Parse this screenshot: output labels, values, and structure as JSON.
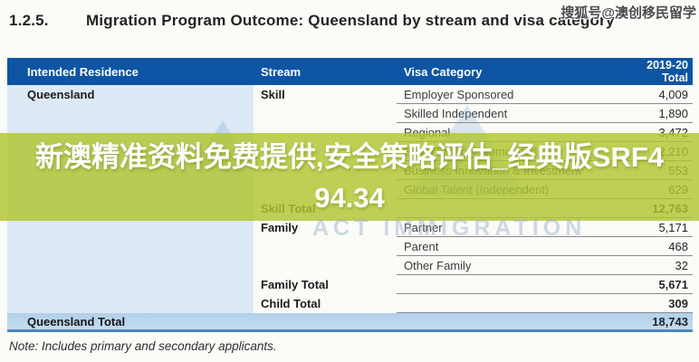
{
  "page": {
    "section_number": "1.2.5.",
    "title": "Migration Program Outcome: Queensland by stream and visa category",
    "note": "Note: Includes primary and secondary applicants."
  },
  "watermarks": {
    "top_right": "搜狐号@澳创移民留学",
    "center": "ACT IMMIGRATION"
  },
  "overlay_banner": {
    "line1": "新澳精准资料免费提供,安全策略评估_经典版SRF4",
    "line2": "94.34"
  },
  "table": {
    "header": {
      "residence": "Intended Residence",
      "stream": "Stream",
      "visa": "Visa Category",
      "total_line1": "2019-20",
      "total_line2": "Total"
    },
    "rows": [
      {
        "residence": "Queensland",
        "stream": "Skill",
        "visa": "Employer Sponsored",
        "total": "4,009",
        "is_total": false
      },
      {
        "residence": "",
        "stream": "",
        "visa": "Skilled Independent",
        "total": "1,890",
        "is_total": false
      },
      {
        "residence": "",
        "stream": "",
        "visa": "Regional",
        "total": "3,472",
        "is_total": false
      },
      {
        "residence": "",
        "stream": "",
        "visa": "State/Territory Nominated",
        "total": "2,210",
        "is_total": false
      },
      {
        "residence": "",
        "stream": "",
        "visa": "Business Innovation & Investment",
        "total": "553",
        "is_total": false
      },
      {
        "residence": "",
        "stream": "",
        "visa": "Global Talent (Independent)",
        "total": "629",
        "is_total": false
      },
      {
        "residence": "",
        "stream": "Skill Total",
        "visa": "",
        "total": "12,763",
        "is_total": true
      },
      {
        "residence": "",
        "stream": "Family",
        "visa": "Partner",
        "total": "5,171",
        "is_total": false
      },
      {
        "residence": "",
        "stream": "",
        "visa": "Parent",
        "total": "468",
        "is_total": false
      },
      {
        "residence": "",
        "stream": "",
        "visa": "Other Family",
        "total": "32",
        "is_total": false
      },
      {
        "residence": "",
        "stream": "Family Total",
        "visa": "",
        "total": "5,671",
        "is_total": true
      },
      {
        "residence": "",
        "stream": "Child Total",
        "visa": "",
        "total": "309",
        "is_total": true
      }
    ],
    "footer": {
      "label": "Queensland Total",
      "total": "18,743"
    }
  },
  "colors": {
    "header_bg": "#0d55a4",
    "residence_column_bg": "#dde9f5",
    "footer_band_bg": "#b7d3ea",
    "footer_band_border": "#4d87bd",
    "row_divider": "#8a8a8a",
    "overlay_banner_bg": "rgba(176,196,48,0.82)"
  }
}
